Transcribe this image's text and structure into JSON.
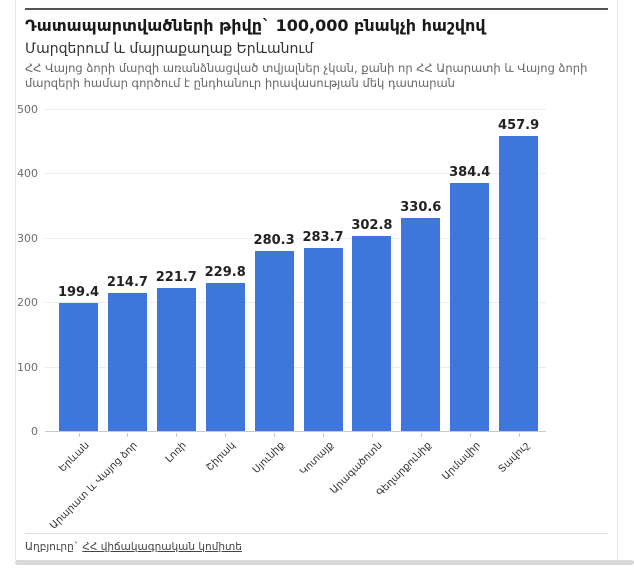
{
  "header": {
    "title": "Դատապարտվածների թիվը` 100,000 բնակչի հաշվով",
    "subtitle": "Մարզերում և մայրաքաղաք Երևանում",
    "description": "ՀՀ Վայոց ձորի մարզի առանձնացված տվյալներ չկան, քանի որ ՀՀ Արարատի և Վայոց ձորի մարզերի համար գործում է ընդհանուր իրավասության մեկ դատարան"
  },
  "chart_data": {
    "type": "bar",
    "categories": [
      "Երևան",
      "Արարատ և Վայոց ձոր",
      "Լոռի",
      "Շիրակ",
      "Սյունիք",
      "Կոտայք",
      "Արագածոտն",
      "Գեղարքունիք",
      "Արմավիր",
      "Տավուշ"
    ],
    "values": [
      199.4,
      214.7,
      221.7,
      229.8,
      280.3,
      283.7,
      302.8,
      330.6,
      384.4,
      457.9
    ],
    "title": "Դատապարտվածների թիվը` 100,000 բնակչի հաշվով",
    "xlabel": "",
    "ylabel": "",
    "ylim": [
      0,
      500
    ],
    "yticks": [
      0,
      100,
      200,
      300,
      400,
      500
    ],
    "grid": "horizontal",
    "legend": "none",
    "bar_color": "#3f76db",
    "value_labels": true
  },
  "footer": {
    "source_prefix": "Աղբյուրը`",
    "source_link": "ՀՀ վիճակագրական կոմիտե"
  },
  "colors": {
    "bar": "#3f76db",
    "title": "#1a1a1a",
    "description": "#666666",
    "top_rule": "#545454"
  }
}
